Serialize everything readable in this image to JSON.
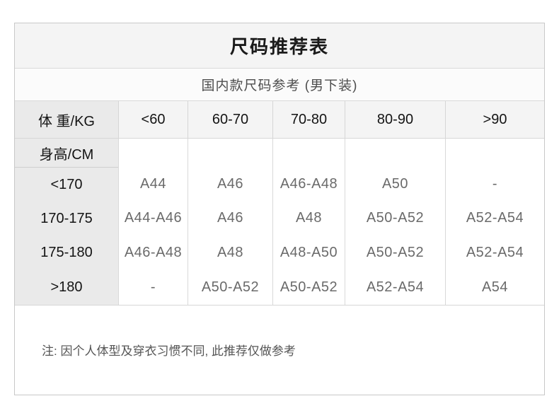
{
  "table": {
    "title": "尺码推荐表",
    "subtitle": "国内款尺码参考 (男下装)",
    "weight_header": {
      "label": "体 重/KG",
      "columns": [
        "<60",
        "60-70",
        "70-80",
        "80-90",
        ">90"
      ]
    },
    "height_header": "身高/CM",
    "rows": [
      {
        "height": "<170",
        "values": [
          "A44",
          "A46",
          "A46-A48",
          "A50",
          "-"
        ]
      },
      {
        "height": "170-175",
        "values": [
          "A44-A46",
          "A46",
          "A48",
          "A50-A52",
          "A52-A54"
        ]
      },
      {
        "height": "175-180",
        "values": [
          "A46-A48",
          "A48",
          "A48-A50",
          "A50-A52",
          "A52-A54"
        ]
      },
      {
        "height": ">180",
        "values": [
          "-",
          "A50-A52",
          "A50-A52",
          "A52-A54",
          "A54"
        ]
      }
    ],
    "note": "注: 因个人体型及穿衣习惯不同, 此推荐仅做参考",
    "colors": {
      "title_band_bg": "#f4f4f4",
      "subtitle_band_bg": "#fbfbfb",
      "header_cell_bg": "#f4f4f4",
      "label_column_bg": "#eaeaea",
      "data_cell_bg": "#ffffff",
      "grid_line": "#d9d9d9",
      "outer_border": "#c8c8c8",
      "title_text": "#1a1a1a",
      "header_text": "#141414",
      "value_text": "#6a6a6a",
      "note_text": "#555555"
    }
  }
}
